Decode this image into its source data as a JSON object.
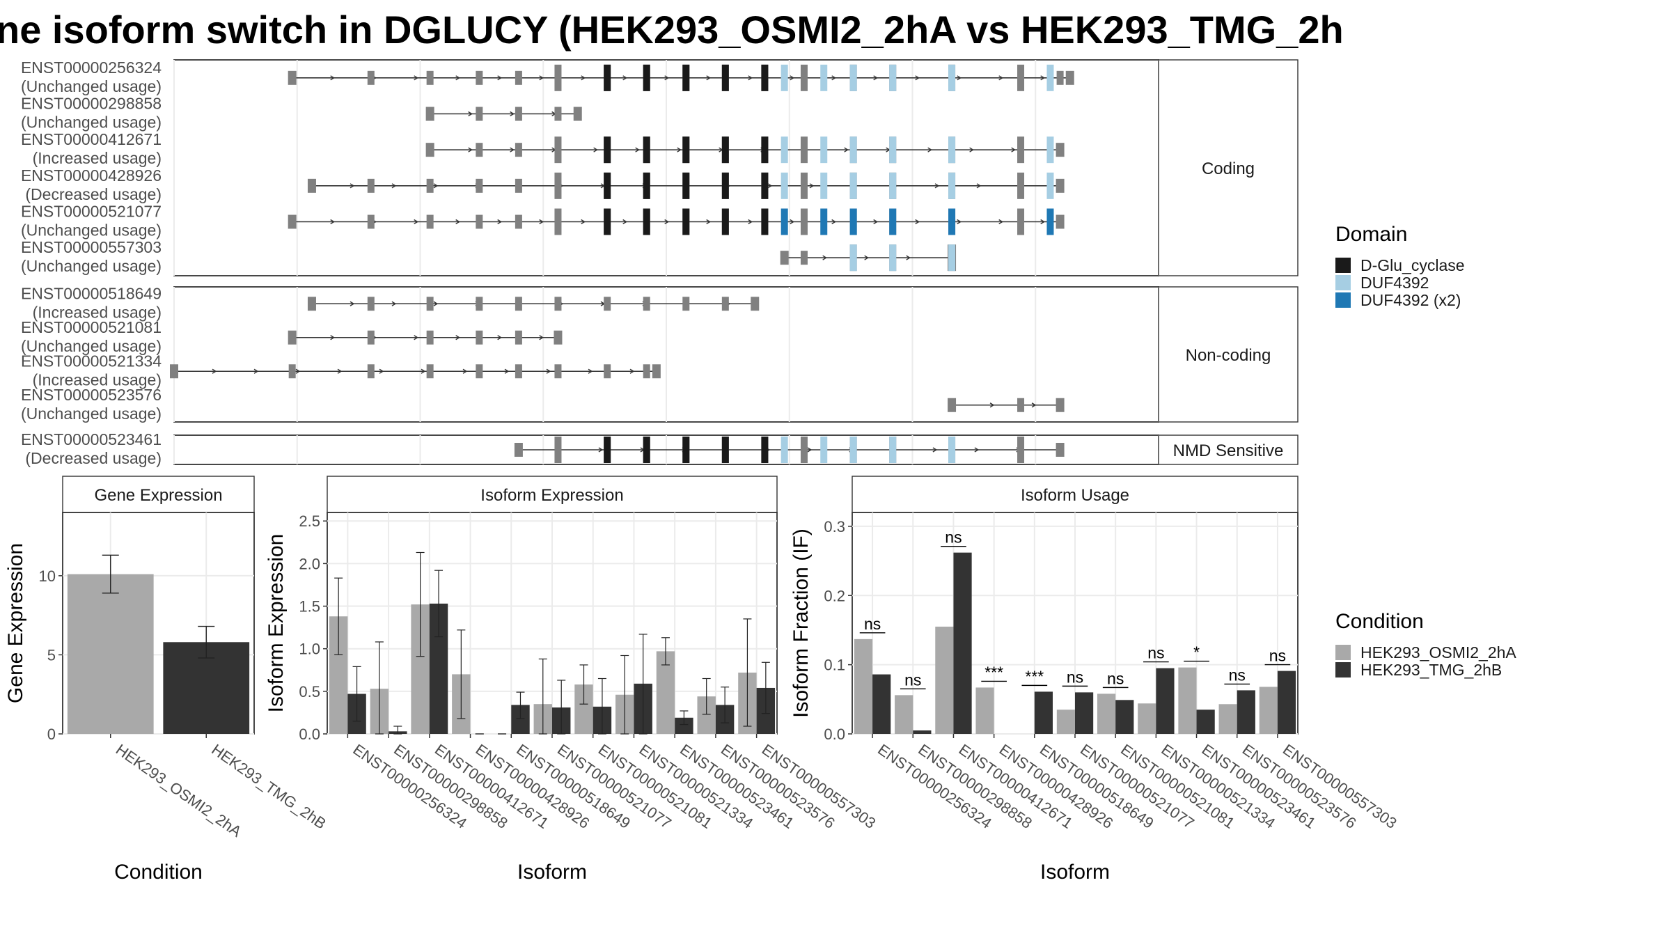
{
  "title": "ne isoform switch in DGLUCY (HEK293_OSMI2_2hA vs HEK293_TMG_2h",
  "colors": {
    "exon": "#808080",
    "d_glu_cyclase": "#1a1a1a",
    "duf4392": "#a6cee3",
    "duf4392_x2": "#1f78b4",
    "cond_a": "#a9a9a9",
    "cond_b": "#333333"
  },
  "structure": {
    "facets": [
      "Coding",
      "Non-coding",
      "NMD Sensitive"
    ],
    "isoforms": [
      {
        "id": "ENST00000256324",
        "usage": "(Unchanged usage)",
        "facet": "Coding",
        "start": 0.12,
        "end": 0.91,
        "cds": [
          0.39,
          0.89
        ],
        "dom2x": false
      },
      {
        "id": "ENST00000298858",
        "usage": "(Unchanged usage)",
        "facet": "Coding",
        "start": 0.26,
        "end": 0.41,
        "cds": null,
        "dom2x": false
      },
      {
        "id": "ENST00000412671",
        "usage": "(Increased usage)",
        "facet": "Coding",
        "start": 0.26,
        "end": 0.9,
        "cds": [
          0.39,
          0.89
        ],
        "dom2x": false
      },
      {
        "id": "ENST00000428926",
        "usage": "(Decreased usage)",
        "facet": "Coding",
        "start": 0.14,
        "end": 0.9,
        "cds": [
          0.39,
          0.89
        ],
        "dom2x": false
      },
      {
        "id": "ENST00000521077",
        "usage": "(Unchanged usage)",
        "facet": "Coding",
        "start": 0.12,
        "end": 0.9,
        "cds": [
          0.39,
          0.89
        ],
        "dom2x": true
      },
      {
        "id": "ENST00000557303",
        "usage": "(Unchanged usage)",
        "facet": "Coding",
        "start": 0.62,
        "end": 0.79,
        "cds": [
          0.69,
          0.79
        ],
        "dom2x": false
      },
      {
        "id": "ENST00000518649",
        "usage": "(Increased usage)",
        "facet": "Non-coding",
        "start": 0.14,
        "end": 0.59,
        "cds": null,
        "dom2x": false
      },
      {
        "id": "ENST00000521081",
        "usage": "(Unchanged usage)",
        "facet": "Non-coding",
        "start": 0.12,
        "end": 0.39,
        "cds": null,
        "dom2x": false
      },
      {
        "id": "ENST00000521334",
        "usage": "(Increased usage)",
        "facet": "Non-coding",
        "start": 0.0,
        "end": 0.49,
        "cds": null,
        "dom2x": false
      },
      {
        "id": "ENST00000523576",
        "usage": "(Unchanged usage)",
        "facet": "Non-coding",
        "start": 0.79,
        "end": 0.9,
        "cds": null,
        "dom2x": false
      },
      {
        "id": "ENST00000523461",
        "usage": "(Decreased usage)",
        "facet": "NMD Sensitive",
        "start": 0.35,
        "end": 0.9,
        "cds": [
          0.39,
          0.86
        ],
        "dom2x": false
      }
    ]
  },
  "legends": {
    "domain": {
      "title": "Domain",
      "items": [
        {
          "label": "D-Glu_cyclase",
          "color": "#1a1a1a"
        },
        {
          "label": "DUF4392",
          "color": "#a6cee3"
        },
        {
          "label": "DUF4392 (x2)",
          "color": "#1f78b4"
        }
      ]
    },
    "condition": {
      "title": "Condition",
      "items": [
        {
          "label": "HEK293_OSMI2_2hA",
          "color": "#a9a9a9"
        },
        {
          "label": "HEK293_TMG_2hB",
          "color": "#333333"
        }
      ]
    }
  },
  "chart_data": [
    {
      "type": "bar",
      "title": "Gene Expression",
      "xlabel": "Condition",
      "ylabel": "Gene Expression",
      "ylim": [
        0,
        14
      ],
      "yticks": [
        0,
        5,
        10
      ],
      "categories": [
        "HEK293_OSMI2_2hA",
        "HEK293_TMG_2hB"
      ],
      "values": [
        10.1,
        5.8
      ],
      "errors": [
        [
          8.9,
          11.3
        ],
        [
          4.8,
          6.8
        ]
      ]
    },
    {
      "type": "bar",
      "title": "Isoform Expression",
      "xlabel": "Isoform",
      "ylabel": "Isoform Expression",
      "ylim": [
        0,
        2.6
      ],
      "yticks": [
        0.0,
        0.5,
        1.0,
        1.5,
        2.0,
        2.5
      ],
      "categories": [
        "ENST00000256324",
        "ENST00000298858",
        "ENST00000412671",
        "ENST00000428926",
        "ENST00000518649",
        "ENST00000521077",
        "ENST00000521081",
        "ENST00000521334",
        "ENST00000523461",
        "ENST00000523576",
        "ENST00000557303"
      ],
      "series": [
        {
          "name": "HEK293_OSMI2_2hA",
          "values": [
            1.38,
            0.53,
            1.52,
            0.7,
            0.0,
            0.35,
            0.58,
            0.46,
            0.97,
            0.44,
            0.72
          ],
          "errors": [
            [
              0.93,
              1.83
            ],
            [
              0.0,
              1.08
            ],
            [
              0.91,
              2.13
            ],
            [
              0.18,
              1.22
            ],
            [
              0.0,
              0.0
            ],
            [
              0.0,
              0.88
            ],
            [
              0.35,
              0.81
            ],
            [
              0.0,
              0.92
            ],
            [
              0.81,
              1.13
            ],
            [
              0.23,
              0.65
            ],
            [
              0.09,
              1.35
            ]
          ]
        },
        {
          "name": "HEK293_TMG_2hB",
          "values": [
            0.47,
            0.03,
            1.53,
            0.0,
            0.34,
            0.31,
            0.32,
            0.59,
            0.19,
            0.34,
            0.54
          ],
          "errors": [
            [
              0.15,
              0.79
            ],
            [
              0.0,
              0.09
            ],
            [
              1.14,
              1.92
            ],
            [
              0.0,
              0.0
            ],
            [
              0.18,
              0.49
            ],
            [
              0.0,
              0.63
            ],
            [
              0.0,
              0.65
            ],
            [
              0.0,
              1.17
            ],
            [
              0.11,
              0.27
            ],
            [
              0.13,
              0.55
            ],
            [
              0.24,
              0.84
            ]
          ]
        }
      ]
    },
    {
      "type": "bar",
      "title": "Isoform Usage",
      "xlabel": "Isoform",
      "ylabel": "Isoform Fraction (IF)",
      "ylim": [
        0,
        0.32
      ],
      "yticks": [
        0.0,
        0.1,
        0.2,
        0.3
      ],
      "categories": [
        "ENST00000256324",
        "ENST00000298858",
        "ENST00000412671",
        "ENST00000428926",
        "ENST00000518649",
        "ENST00000521077",
        "ENST00000521081",
        "ENST00000521334",
        "ENST00000523461",
        "ENST00000523576",
        "ENST00000557303"
      ],
      "series": [
        {
          "name": "HEK293_OSMI2_2hA",
          "values": [
            0.137,
            0.056,
            0.155,
            0.067,
            0.0,
            0.035,
            0.058,
            0.044,
            0.096,
            0.043,
            0.068
          ]
        },
        {
          "name": "HEK293_TMG_2hB",
          "values": [
            0.086,
            0.005,
            0.262,
            0.0,
            0.061,
            0.06,
            0.049,
            0.095,
            0.035,
            0.063,
            0.091
          ]
        }
      ],
      "significance": [
        "ns",
        "ns",
        "ns",
        "***",
        "***",
        "ns",
        "ns",
        "ns",
        "*",
        "ns",
        "ns"
      ]
    }
  ]
}
